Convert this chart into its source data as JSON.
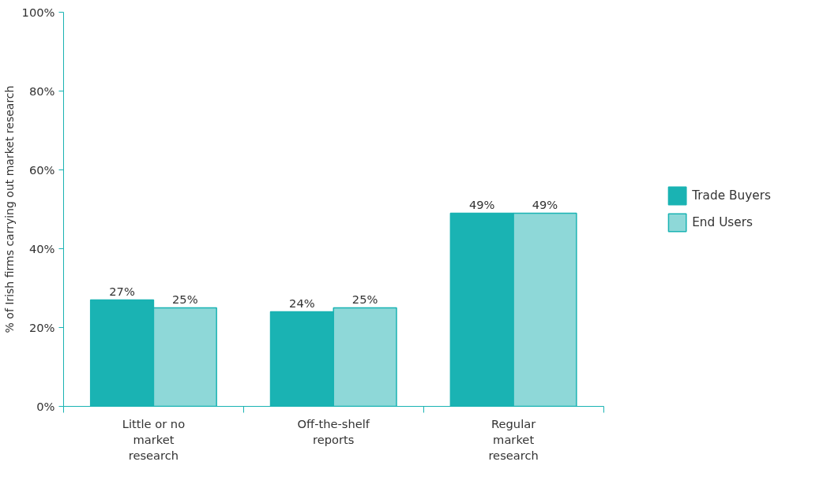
{
  "chart_data": {
    "type": "bar",
    "ylabel": "% of Irish firms carrying out market research",
    "categories": [
      "Little or no market research",
      "Off-the-shelf reports",
      "Regular market research"
    ],
    "series": [
      {
        "name": "Trade Buyers",
        "color": "#1ab3b3",
        "values": [
          27,
          24,
          49
        ],
        "value_labels": [
          "27%",
          "24%",
          "49%"
        ]
      },
      {
        "name": "End Users",
        "color": "#8ed8d8",
        "values": [
          25,
          25,
          49
        ],
        "value_labels": [
          "25%",
          "25%",
          "49%"
        ]
      }
    ],
    "ylim": [
      0,
      100
    ],
    "yticks": [
      {
        "value": 0,
        "label": "0%"
      },
      {
        "value": 20,
        "label": "20%"
      },
      {
        "value": 40,
        "label": "40%"
      },
      {
        "value": 60,
        "label": "60%"
      },
      {
        "value": 80,
        "label": "80%"
      },
      {
        "value": 100,
        "label": "100%"
      }
    ],
    "grid": false,
    "legend": "right"
  }
}
